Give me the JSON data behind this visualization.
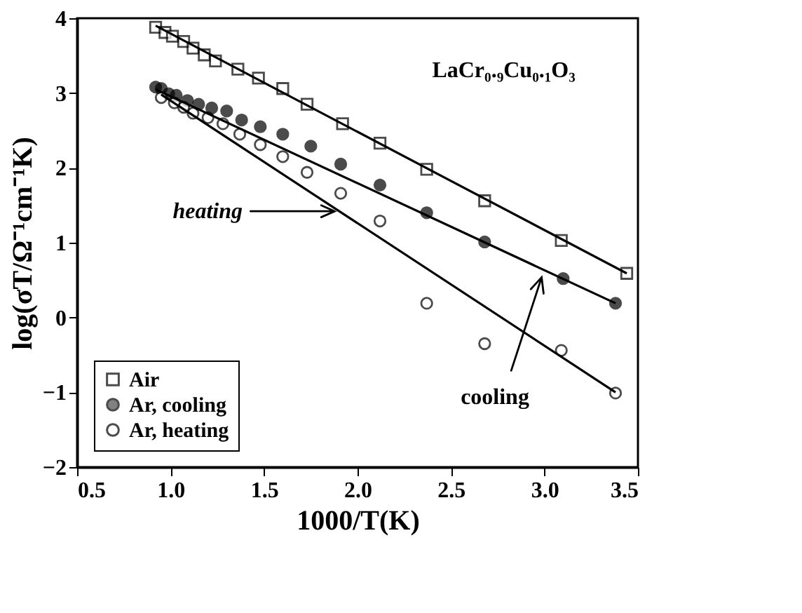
{
  "chart_data": {
    "type": "scatter",
    "xlabel": "1000/T(K)",
    "ylabel": "log(σT/Ω⁻¹cm⁻¹K)",
    "xlim": [
      0.5,
      3.5
    ],
    "ylim": [
      -2,
      4
    ],
    "xticks": [
      {
        "value": 0.5,
        "label": "0.5"
      },
      {
        "value": 1.0,
        "label": "1.0"
      },
      {
        "value": 1.5,
        "label": "1.5"
      },
      {
        "value": 2.0,
        "label": "2.0"
      },
      {
        "value": 2.5,
        "label": "2.5"
      },
      {
        "value": 3.0,
        "label": "3.0"
      },
      {
        "value": 3.5,
        "label": "3.5"
      }
    ],
    "yticks": [
      -2,
      -1,
      0,
      1,
      2,
      3,
      4
    ],
    "grid": false,
    "legend": "bottom left",
    "annotations": [
      "LaCr₀.₉Cu₀.₁O₃",
      "heating",
      "cooling"
    ],
    "series": [
      {
        "name": "Air",
        "color": "#ffffff",
        "marker": "square",
        "x": [
          0.92,
          0.97,
          1.01,
          1.07,
          1.12,
          1.18,
          1.24,
          1.36,
          1.47,
          1.6,
          1.73,
          1.92,
          2.12,
          2.37,
          2.68,
          3.09,
          3.44
        ],
        "values": [
          3.88,
          3.81,
          3.76,
          3.69,
          3.6,
          3.51,
          3.43,
          3.32,
          3.2,
          3.06,
          2.85,
          2.59,
          2.33,
          1.98,
          1.56,
          1.03,
          0.59
        ]
      },
      {
        "name": "Ar, cooling",
        "color": "#000000",
        "marker": "circle",
        "x": [
          0.92,
          0.95,
          0.99,
          1.03,
          1.09,
          1.15,
          1.22,
          1.3,
          1.38,
          1.48,
          1.6,
          1.75,
          1.91,
          2.12,
          2.37,
          2.68,
          3.1,
          3.38
        ],
        "values": [
          3.08,
          3.06,
          2.99,
          2.97,
          2.9,
          2.85,
          2.8,
          2.76,
          2.64,
          2.55,
          2.45,
          2.29,
          2.05,
          1.77,
          1.4,
          1.01,
          0.52,
          0.19
        ]
      },
      {
        "name": "Ar, heating",
        "color": "#ffffff",
        "marker": "circle",
        "x": [
          0.95,
          1.02,
          1.07,
          1.12,
          1.2,
          1.28,
          1.37,
          1.48,
          1.6,
          1.73,
          1.91,
          2.12,
          2.37,
          2.68,
          3.09,
          3.38
        ],
        "values": [
          2.94,
          2.87,
          2.81,
          2.73,
          2.67,
          2.59,
          2.45,
          2.31,
          2.15,
          1.94,
          1.66,
          1.29,
          0.19,
          -0.35,
          -0.44,
          -1.01
        ]
      },
      {
        "type": "line",
        "color": "#000000",
        "x": [
          0.92,
          3.44
        ],
        "values": [
          3.9,
          0.59
        ]
      },
      {
        "type": "line",
        "color": "#000000",
        "x": [
          0.92,
          3.38
        ],
        "values": [
          3.05,
          0.19
        ]
      },
      {
        "type": "line",
        "color": "#000000",
        "x": [
          0.95,
          3.38
        ],
        "values": [
          2.98,
          -1.0
        ]
      }
    ]
  }
}
